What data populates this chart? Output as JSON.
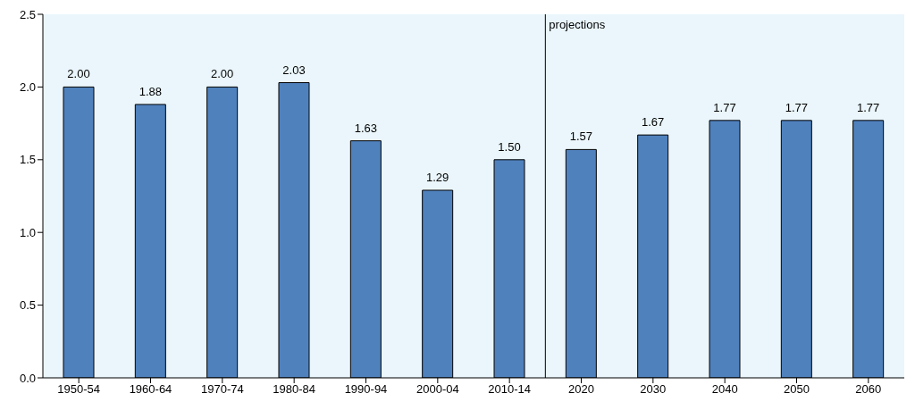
{
  "chart_data": {
    "type": "bar",
    "categories": [
      "1950-54",
      "1960-64",
      "1970-74",
      "1980-84",
      "1990-94",
      "2000-04",
      "2010-14",
      "2020",
      "2030",
      "2040",
      "2050",
      "2060"
    ],
    "values": [
      2.0,
      1.88,
      2.0,
      2.03,
      1.63,
      1.29,
      1.5,
      1.57,
      1.67,
      1.77,
      1.77,
      1.77
    ],
    "value_labels": [
      "2.00",
      "1.88",
      "2.00",
      "2.03",
      "1.63",
      "1.29",
      "1.50",
      "1.57",
      "1.67",
      "1.77",
      "1.77",
      "1.77"
    ],
    "color": "#4f81bd",
    "ylim": [
      0,
      2.5
    ],
    "yticks": [
      {
        "value": 0,
        "label": "0.0"
      },
      {
        "value": 0.5,
        "label": "0.5"
      },
      {
        "value": 1,
        "label": "1.0"
      },
      {
        "value": 1.5,
        "label": "1.5"
      },
      {
        "value": 2,
        "label": "2.0"
      },
      {
        "value": 2.5,
        "label": "2.5"
      }
    ],
    "annotations": [
      "projections"
    ],
    "grid": false,
    "legend": false
  }
}
